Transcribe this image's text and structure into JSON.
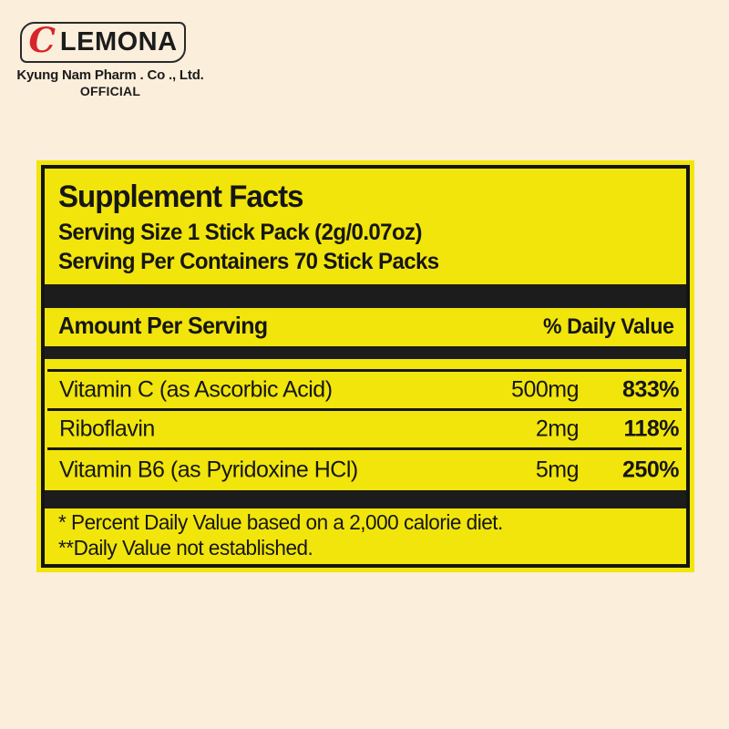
{
  "page": {
    "background_color": "#FBEEDB"
  },
  "brand": {
    "logo_letter": "C",
    "logo_name": "LEMONA",
    "company_line": "Kyung Nam Pharm . Co ., Ltd.",
    "official_line": "OFFICIAL",
    "logo_letter_color": "#D6252B"
  },
  "supplement_panel": {
    "background_color": "#F1E50B",
    "border_color": "#141414",
    "title": "Supplement Facts",
    "serving_size_line": "Serving Size 1 Stick Pack (2g/0.07oz)",
    "servings_per_line": "Serving Per Containers 70 Stick Packs",
    "column_header_left": "Amount Per Serving",
    "column_header_right": "% Daily Value",
    "rows": [
      {
        "name": "Vitamin C (as Ascorbic Acid)",
        "amount": "500mg",
        "daily_value": "833%"
      },
      {
        "name": "Riboflavin",
        "amount": "2mg",
        "daily_value": "118%"
      },
      {
        "name": "Vitamin B6 (as Pyridoxine HCl)",
        "amount": "5mg",
        "daily_value": "250%"
      }
    ],
    "footnotes": [
      "* Percent Daily Value based on a 2,000 calorie diet.",
      "**Daily Value not established."
    ]
  }
}
